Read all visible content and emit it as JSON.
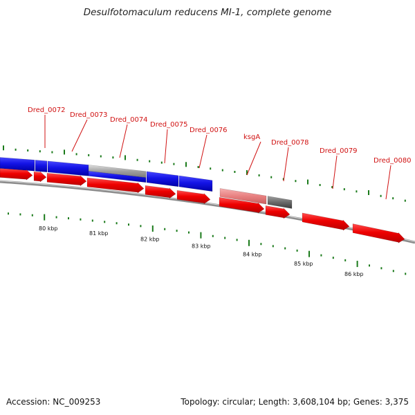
{
  "title": "Desulfotomaculum reducens MI-1, complete genome",
  "footer": {
    "accession": "Accession: NC_009253",
    "summary": "Topology: circular; Length: 3,608,104 bp; Genes: 3,375"
  },
  "colors": {
    "gene_red": "#e8000a",
    "cds_blue": "#1010e0",
    "pseudo_pink": "#e88a8a",
    "dark_gray": "#707070",
    "label_red": "#d01010",
    "tick_green": "#1a7a1a",
    "backbone": "#8c8c8c"
  },
  "gene_labels": [
    "Dred_0072",
    "Dred_0073",
    "Dred_0074",
    "Dred_0075",
    "Dred_0076",
    "ksgA",
    "Dred_0078",
    "Dred_0079",
    "Dred_0080"
  ],
  "kbp_labels": [
    "80 kbp",
    "81 kbp",
    "82 kbp",
    "83 kbp",
    "84 kbp",
    "85 kbp",
    "86 kbp"
  ]
}
